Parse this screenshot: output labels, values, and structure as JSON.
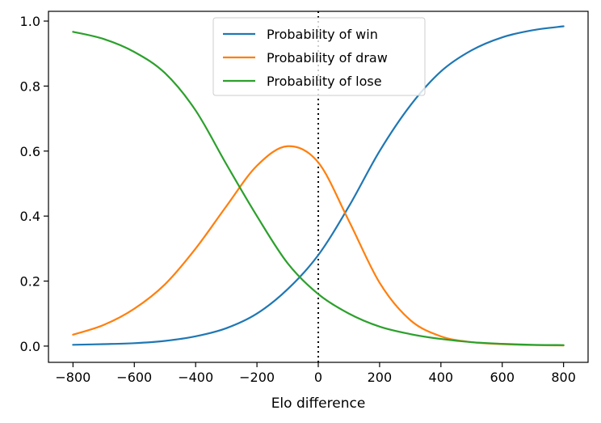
{
  "chart_data": {
    "type": "line",
    "xlabel": "Elo difference",
    "ylabel": "",
    "xlim": [
      -880,
      880
    ],
    "ylim": [
      -0.05,
      1.03
    ],
    "xticks": [
      -800,
      -600,
      -400,
      -200,
      0,
      200,
      400,
      600,
      800
    ],
    "xtick_labels": [
      "−800",
      "−600",
      "−400",
      "−200",
      "0",
      "200",
      "400",
      "600",
      "800"
    ],
    "yticks": [
      0.0,
      0.2,
      0.4,
      0.6,
      0.8,
      1.0
    ],
    "ytick_labels": [
      "0.0",
      "0.2",
      "0.4",
      "0.6",
      "0.8",
      "1.0"
    ],
    "legend_position": "upper center",
    "vline": {
      "x": 0,
      "style": "dotted",
      "color": "#000000"
    },
    "x": [
      -800,
      -700,
      -600,
      -500,
      -400,
      -300,
      -200,
      -100,
      0,
      100,
      200,
      300,
      400,
      500,
      600,
      700,
      800
    ],
    "series": [
      {
        "name": "Probability of win",
        "color": "#1f77b4",
        "values": [
          0.004,
          0.006,
          0.009,
          0.016,
          0.03,
          0.055,
          0.1,
          0.175,
          0.28,
          0.43,
          0.6,
          0.74,
          0.845,
          0.91,
          0.95,
          0.972,
          0.984
        ]
      },
      {
        "name": "Probability of draw",
        "color": "#ff7f0e",
        "values": [
          0.035,
          0.065,
          0.115,
          0.19,
          0.3,
          0.43,
          0.555,
          0.615,
          0.565,
          0.385,
          0.195,
          0.08,
          0.03,
          0.012,
          0.006,
          0.003,
          0.002
        ]
      },
      {
        "name": "Probability of lose",
        "color": "#2ca02c",
        "values": [
          0.967,
          0.945,
          0.905,
          0.84,
          0.725,
          0.56,
          0.4,
          0.255,
          0.16,
          0.1,
          0.06,
          0.037,
          0.022,
          0.012,
          0.007,
          0.004,
          0.003
        ]
      }
    ]
  }
}
